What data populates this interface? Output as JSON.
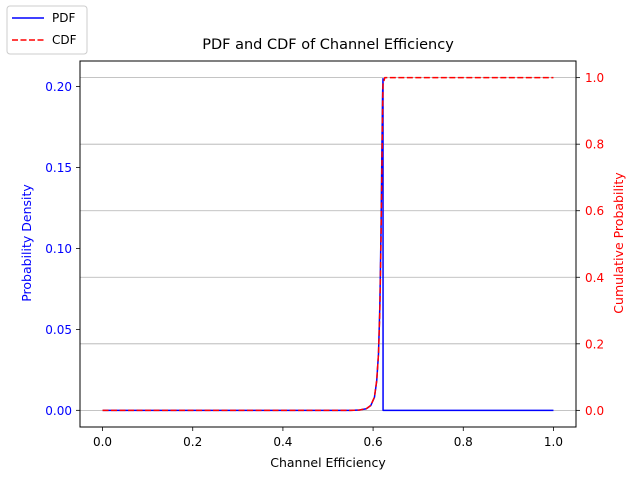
{
  "chart_data": {
    "type": "line",
    "title": "PDF and CDF of Channel Efficiency",
    "xlabel": "Channel Efficiency",
    "ylabel_left": "Probability Density",
    "ylabel_right": "Cumulative Probability",
    "xlim": [
      -0.05,
      1.05
    ],
    "ylim_left": [
      -0.0103,
      0.2158
    ],
    "ylim_right": [
      -0.05,
      1.05
    ],
    "xticks": [
      0.0,
      0.2,
      0.4,
      0.6,
      0.8,
      1.0
    ],
    "xtick_labels": [
      "0.0",
      "0.2",
      "0.4",
      "0.6",
      "0.8",
      "1.0"
    ],
    "yticks_left": [
      0.0,
      0.05,
      0.1,
      0.15,
      0.2
    ],
    "ytick_labels_left": [
      "0.00",
      "0.05",
      "0.10",
      "0.15",
      "0.20"
    ],
    "yticks_right": [
      0.0,
      0.2,
      0.4,
      0.6,
      0.8,
      1.0
    ],
    "ytick_labels_right": [
      "0.0",
      "0.2",
      "0.4",
      "0.6",
      "0.8",
      "1.0"
    ],
    "grid": "horizontal lines at right-axis ticks",
    "legend_placement": "top-left",
    "series": [
      {
        "name": "PDF",
        "axis": "left",
        "color": "#0000ff",
        "style": "solid",
        "x": [
          0.0,
          0.55,
          0.57,
          0.585,
          0.595,
          0.603,
          0.608,
          0.612,
          0.615,
          0.6175,
          0.6195,
          0.621,
          0.622,
          0.6221,
          1.0
        ],
        "y": [
          0.0,
          0.0,
          0.0002,
          0.001,
          0.003,
          0.008,
          0.018,
          0.035,
          0.065,
          0.11,
          0.16,
          0.195,
          0.2048,
          0.0,
          0.0
        ]
      },
      {
        "name": "CDF",
        "axis": "right",
        "color": "#ff0000",
        "style": "dashed",
        "x": [
          0.0,
          0.55,
          0.57,
          0.585,
          0.595,
          0.603,
          0.608,
          0.612,
          0.615,
          0.6175,
          0.6195,
          0.621,
          0.622,
          0.626,
          1.0
        ],
        "y": [
          0.0,
          0.0,
          0.001,
          0.005,
          0.015,
          0.04,
          0.09,
          0.17,
          0.3,
          0.5,
          0.72,
          0.9,
          0.98,
          1.0,
          1.0
        ]
      }
    ]
  }
}
